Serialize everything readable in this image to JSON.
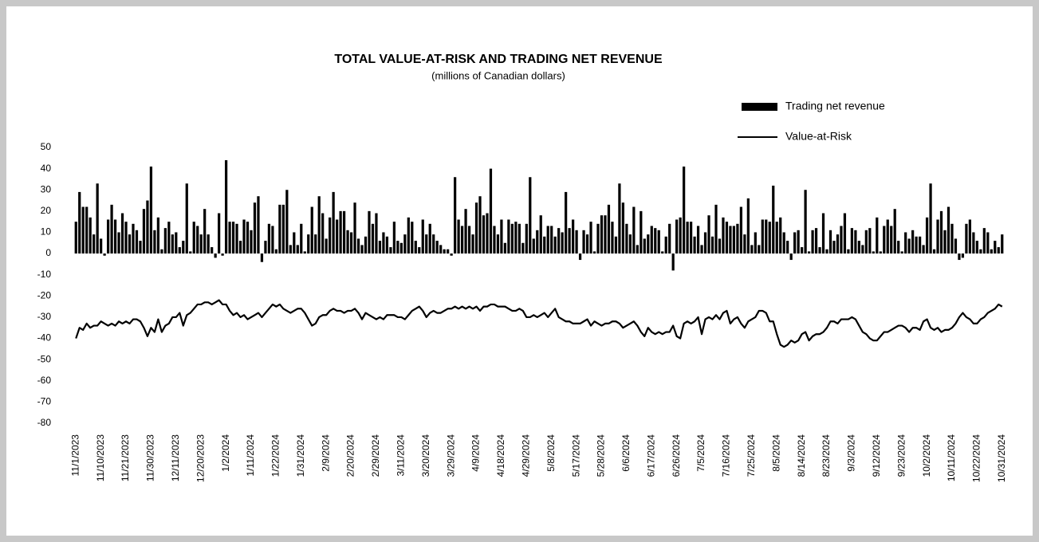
{
  "chart_data": {
    "type": "combo",
    "title": "TOTAL VALUE-AT-RISK AND TRADING NET REVENUE",
    "subtitle": "(millions of Canadian dollars)",
    "categories": [
      "11/1/2023",
      null,
      null,
      null,
      null,
      null,
      null,
      "11/10/2023",
      null,
      null,
      null,
      null,
      null,
      null,
      "11/21/2023",
      null,
      null,
      null,
      null,
      null,
      null,
      "11/30/2023",
      null,
      null,
      null,
      null,
      null,
      null,
      "12/11/2023",
      null,
      null,
      null,
      null,
      null,
      null,
      "12/20/2023",
      null,
      null,
      null,
      null,
      null,
      null,
      "1/2/2024",
      null,
      null,
      null,
      null,
      null,
      null,
      "1/11/2024",
      null,
      null,
      null,
      null,
      null,
      null,
      "1/22/2024",
      null,
      null,
      null,
      null,
      null,
      null,
      "1/31/2024",
      null,
      null,
      null,
      null,
      null,
      null,
      "2/9/2024",
      null,
      null,
      null,
      null,
      null,
      null,
      "2/20/2024",
      null,
      null,
      null,
      null,
      null,
      null,
      "2/29/2024",
      null,
      null,
      null,
      null,
      null,
      null,
      "3/11/2024",
      null,
      null,
      null,
      null,
      null,
      null,
      "3/20/2024",
      null,
      null,
      null,
      null,
      null,
      null,
      "3/29/2024",
      null,
      null,
      null,
      null,
      null,
      null,
      "4/9/2024",
      null,
      null,
      null,
      null,
      null,
      null,
      "4/18/2024",
      null,
      null,
      null,
      null,
      null,
      null,
      "4/29/2024",
      null,
      null,
      null,
      null,
      null,
      null,
      "5/8/2024",
      null,
      null,
      null,
      null,
      null,
      null,
      "5/17/2024",
      null,
      null,
      null,
      null,
      null,
      null,
      "5/28/2024",
      null,
      null,
      null,
      null,
      null,
      null,
      "6/6/2024",
      null,
      null,
      null,
      null,
      null,
      null,
      "6/17/2024",
      null,
      null,
      null,
      null,
      null,
      null,
      "6/26/2024",
      null,
      null,
      null,
      null,
      null,
      null,
      "7/5/2024",
      null,
      null,
      null,
      null,
      null,
      null,
      "7/16/2024",
      null,
      null,
      null,
      null,
      null,
      null,
      "7/25/2024",
      null,
      null,
      null,
      null,
      null,
      null,
      "8/5/2024",
      null,
      null,
      null,
      null,
      null,
      null,
      "8/14/2024",
      null,
      null,
      null,
      null,
      null,
      null,
      "8/23/2024",
      null,
      null,
      null,
      null,
      null,
      null,
      "9/3/2024",
      null,
      null,
      null,
      null,
      null,
      null,
      "9/12/2024",
      null,
      null,
      null,
      null,
      null,
      null,
      "9/23/2024",
      null,
      null,
      null,
      null,
      null,
      null,
      "10/2/2024",
      null,
      null,
      null,
      null,
      null,
      null,
      "10/11/2024",
      null,
      null,
      null,
      null,
      null,
      null,
      "10/22/2024",
      null,
      null,
      null,
      null,
      null,
      null,
      "10/31/2024"
    ],
    "series": [
      {
        "name": "Trading net revenue",
        "type": "bar",
        "color": "#000000",
        "values": [
          15,
          29,
          22,
          22,
          17,
          9,
          33,
          7,
          -1,
          16,
          23,
          16,
          10,
          19,
          15,
          9,
          14,
          11,
          6,
          21,
          25,
          41,
          11,
          17,
          2,
          12,
          15,
          9,
          10,
          3,
          6,
          33,
          1,
          15,
          13,
          9,
          21,
          9,
          3,
          -2,
          19,
          -1,
          44,
          15,
          15,
          14,
          6,
          16,
          15,
          11,
          24,
          27,
          -4,
          6,
          14,
          13,
          2,
          23,
          23,
          30,
          4,
          10,
          4,
          14,
          1,
          9,
          22,
          9,
          27,
          19,
          7,
          17,
          29,
          16,
          20,
          20,
          11,
          10,
          24,
          7,
          4,
          8,
          20,
          14,
          19,
          6,
          10,
          8,
          3,
          15,
          6,
          5,
          9,
          17,
          15,
          6,
          3,
          16,
          9,
          14,
          9,
          6,
          4,
          2,
          2,
          -1,
          36,
          16,
          13,
          21,
          13,
          9,
          24,
          27,
          18,
          19,
          40,
          13,
          9,
          16,
          5,
          16,
          14,
          15,
          14,
          5,
          14,
          36,
          7,
          11,
          18,
          8,
          13,
          13,
          8,
          12,
          10,
          29,
          12,
          16,
          11,
          -3,
          11,
          9,
          15,
          1,
          14,
          18,
          18,
          23,
          15,
          8,
          33,
          24,
          14,
          9,
          22,
          4,
          20,
          7,
          9,
          13,
          12,
          11,
          1,
          8,
          14,
          -8,
          16,
          17,
          41,
          15,
          15,
          8,
          13,
          4,
          10,
          18,
          8,
          23,
          7,
          17,
          15,
          13,
          13,
          14,
          22,
          9,
          26,
          4,
          10,
          4,
          16,
          16,
          15,
          32,
          15,
          17,
          10,
          6,
          -3,
          10,
          11,
          3,
          30,
          1,
          11,
          12,
          3,
          19,
          2,
          11,
          6,
          9,
          13,
          19,
          2,
          12,
          11,
          6,
          4,
          11,
          12,
          1,
          17,
          1,
          13,
          16,
          13,
          21,
          6,
          1,
          10,
          7,
          11,
          8,
          8,
          4,
          17,
          33,
          2,
          16,
          20,
          11,
          22,
          14,
          7,
          -3,
          -2,
          14,
          16,
          10,
          6,
          2,
          12,
          10,
          2,
          6,
          3,
          9
        ]
      },
      {
        "name": "Value-at-Risk",
        "type": "line",
        "color": "#000000",
        "values": [
          -40,
          -35,
          -36,
          -33,
          -35,
          -34,
          -34,
          -32,
          -33,
          -34,
          -33,
          -34,
          -32,
          -33,
          -32,
          -33,
          -31,
          -31,
          -32,
          -35,
          -39,
          -35,
          -37,
          -31,
          -37,
          -34,
          -33,
          -30,
          -30,
          -28,
          -34,
          -29,
          -28,
          -26,
          -24,
          -24,
          -23,
          -23,
          -24,
          -23,
          -22,
          -24,
          -24,
          -27,
          -29,
          -28,
          -30,
          -29,
          -31,
          -30,
          -29,
          -28,
          -30,
          -28,
          -26,
          -24,
          -25,
          -24,
          -26,
          -27,
          -28,
          -27,
          -26,
          -26,
          -28,
          -31,
          -34,
          -33,
          -30,
          -29,
          -29,
          -27,
          -26,
          -27,
          -27,
          -28,
          -27,
          -27,
          -26,
          -28,
          -31,
          -28,
          -29,
          -30,
          -31,
          -30,
          -31,
          -29,
          -29,
          -29,
          -30,
          -30,
          -31,
          -29,
          -27,
          -26,
          -25,
          -27,
          -30,
          -28,
          -27,
          -28,
          -28,
          -27,
          -26,
          -26,
          -25,
          -26,
          -25,
          -26,
          -25,
          -26,
          -25,
          -27,
          -25,
          -25,
          -24,
          -24,
          -25,
          -25,
          -25,
          -26,
          -27,
          -27,
          -26,
          -27,
          -30,
          -30,
          -29,
          -30,
          -29,
          -28,
          -30,
          -28,
          -26,
          -30,
          -31,
          -32,
          -32,
          -33,
          -33,
          -33,
          -32,
          -31,
          -34,
          -32,
          -33,
          -34,
          -33,
          -33,
          -32,
          -32,
          -33,
          -35,
          -34,
          -33,
          -32,
          -34,
          -37,
          -39,
          -35,
          -37,
          -38,
          -37,
          -38,
          -37,
          -37,
          -34,
          -39,
          -40,
          -33,
          -32,
          -33,
          -32,
          -30,
          -38,
          -31,
          -30,
          -31,
          -29,
          -31,
          -28,
          -27,
          -33,
          -31,
          -30,
          -33,
          -35,
          -32,
          -31,
          -30,
          -27,
          -27,
          -28,
          -32,
          -32,
          -38,
          -43,
          -44,
          -43,
          -41,
          -42,
          -41,
          -38,
          -37,
          -41,
          -39,
          -38,
          -38,
          -37,
          -35,
          -32,
          -32,
          -33,
          -31,
          -31,
          -31,
          -30,
          -31,
          -34,
          -37,
          -38,
          -40,
          -41,
          -41,
          -39,
          -37,
          -37,
          -36,
          -35,
          -34,
          -34,
          -35,
          -37,
          -35,
          -35,
          -36,
          -32,
          -31,
          -35,
          -36,
          -35,
          -37,
          -36,
          -36,
          -35,
          -33,
          -30,
          -28,
          -30,
          -31,
          -33,
          -33,
          -31,
          -30,
          -28,
          -27,
          -26,
          -24,
          -25
        ]
      }
    ],
    "ylim": [
      -80,
      50
    ],
    "yticks": [
      -80,
      -70,
      -60,
      -50,
      -40,
      -30,
      -20,
      -10,
      0,
      10,
      20,
      30,
      40,
      50
    ],
    "grid": false,
    "legend": "top-right"
  }
}
